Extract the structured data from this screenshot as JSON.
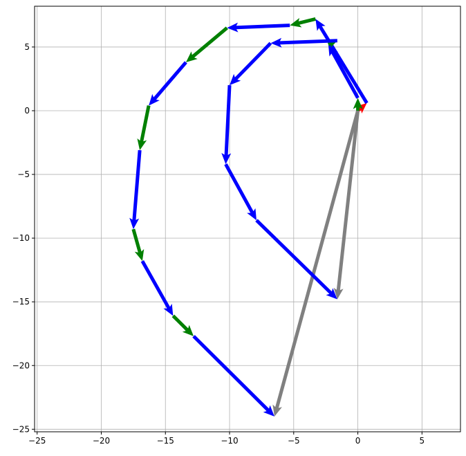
{
  "chart_data": {
    "type": "quiver",
    "title": "",
    "xlabel": "",
    "ylabel": "",
    "xlim": [
      -25.2,
      8.0
    ],
    "ylim": [
      -25.2,
      8.2
    ],
    "grid": true,
    "xticks": [
      -25,
      -20,
      -15,
      -10,
      -5,
      0,
      5
    ],
    "yticks": [
      -25,
      -20,
      -15,
      -10,
      -5,
      0,
      5
    ],
    "xtick_labels": [
      "−25",
      "−20",
      "−15",
      "−10",
      "−5",
      "0",
      "5"
    ],
    "ytick_labels": [
      "−25",
      "−20",
      "−15",
      "−10",
      "−5",
      "0",
      "5"
    ],
    "colors": {
      "blue": "#0000ff",
      "green": "#008000",
      "red": "#ff0000",
      "gray": "#808080"
    },
    "arrows": [
      {
        "x0": 0.0,
        "y0": 0.0,
        "x1": 0.7,
        "y1": 0.6,
        "color": "red"
      },
      {
        "x0": 0.7,
        "y0": 0.6,
        "x1": -3.3,
        "y1": 7.2,
        "color": "blue"
      },
      {
        "x0": -3.3,
        "y0": 7.2,
        "x1": -5.3,
        "y1": 6.7,
        "color": "green"
      },
      {
        "x0": -5.3,
        "y0": 6.7,
        "x1": -10.2,
        "y1": 6.5,
        "color": "blue"
      },
      {
        "x0": -10.2,
        "y0": 6.5,
        "x1": -13.4,
        "y1": 3.8,
        "color": "green"
      },
      {
        "x0": -13.4,
        "y0": 3.8,
        "x1": -16.3,
        "y1": 0.4,
        "color": "blue"
      },
      {
        "x0": -16.3,
        "y0": 0.4,
        "x1": -17.0,
        "y1": -3.1,
        "color": "green"
      },
      {
        "x0": -17.0,
        "y0": -3.1,
        "x1": -17.5,
        "y1": -9.3,
        "color": "blue"
      },
      {
        "x0": -17.5,
        "y0": -9.3,
        "x1": -16.8,
        "y1": -11.8,
        "color": "green"
      },
      {
        "x0": -16.8,
        "y0": -11.8,
        "x1": -14.4,
        "y1": -16.1,
        "color": "blue"
      },
      {
        "x0": -14.4,
        "y0": -16.1,
        "x1": -12.8,
        "y1": -17.7,
        "color": "green"
      },
      {
        "x0": -12.8,
        "y0": -17.7,
        "x1": -6.5,
        "y1": -24.0,
        "color": "blue"
      },
      {
        "x0": 0.0,
        "y0": 0.0,
        "x1": -6.5,
        "y1": -24.0,
        "color": "gray"
      },
      {
        "x0": 0.0,
        "y0": 0.0,
        "x1": 0.0,
        "y1": 1.0,
        "color": "green"
      },
      {
        "x0": 0.0,
        "y0": 1.0,
        "x1": -2.3,
        "y1": 5.2,
        "color": "blue"
      },
      {
        "x0": -2.3,
        "y0": 5.2,
        "x1": -1.6,
        "y1": 5.5,
        "color": "green"
      },
      {
        "x0": -1.6,
        "y0": 5.5,
        "x1": -6.8,
        "y1": 5.3,
        "color": "blue"
      },
      {
        "x0": -6.8,
        "y0": 5.3,
        "x1": -10.0,
        "y1": 2.0,
        "color": "blue"
      },
      {
        "x0": -10.0,
        "y0": 2.0,
        "x1": -10.3,
        "y1": -4.2,
        "color": "blue"
      },
      {
        "x0": -10.3,
        "y0": -4.2,
        "x1": -7.9,
        "y1": -8.6,
        "color": "blue"
      },
      {
        "x0": -7.9,
        "y0": -8.6,
        "x1": -1.6,
        "y1": -14.8,
        "color": "blue"
      },
      {
        "x0": 0.0,
        "y0": 0.0,
        "x1": -1.6,
        "y1": -14.8,
        "color": "gray"
      }
    ]
  }
}
